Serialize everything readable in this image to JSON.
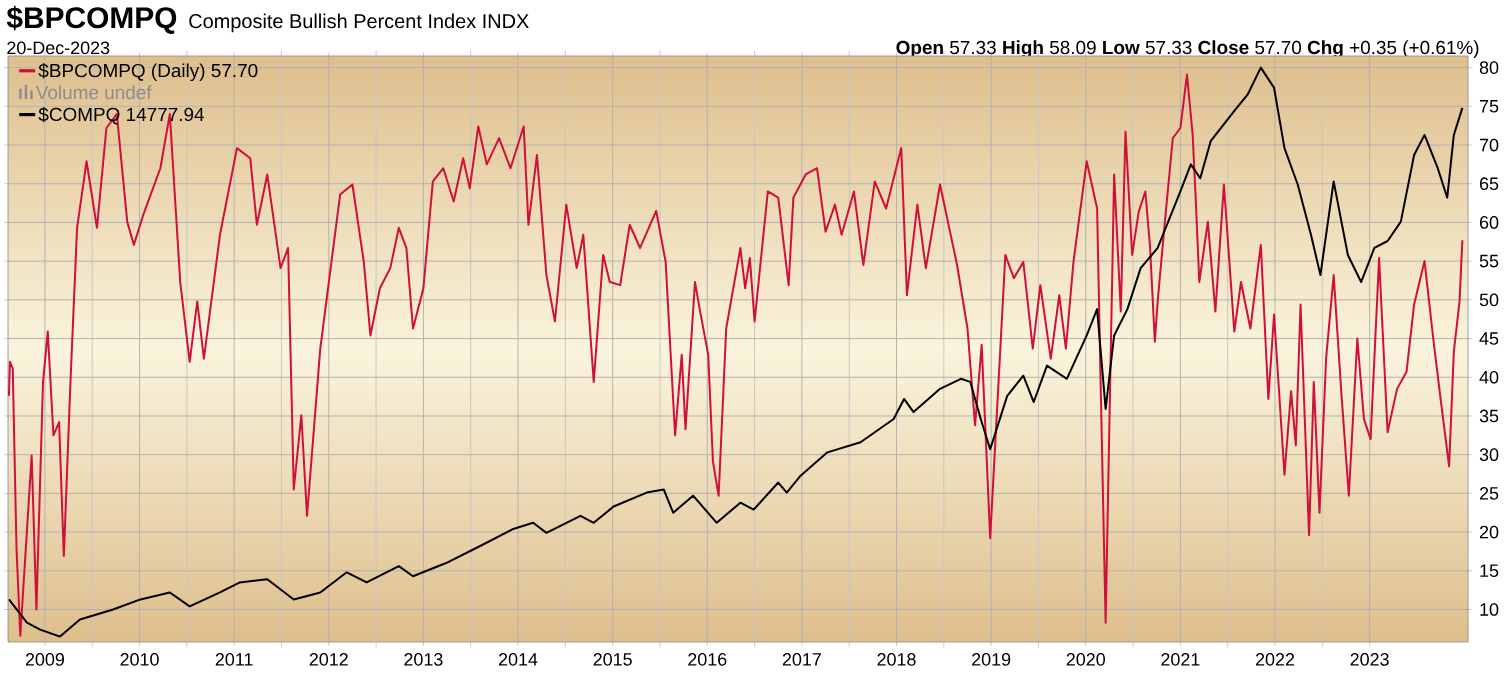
{
  "chart_data": {
    "type": "line",
    "title": "$BPCOMPQ",
    "subtitle": "Composite Bullish Percent Index  INDX",
    "annotations": [
      "20-Dec-2023",
      "**Open** 57.33  **High** 58.09  **Low** 57.33  **Close** 57.70  **Chg** +0.35 (+0.61%)",
      "Volume undef"
    ],
    "series": [
      {
        "name": "$BPCOMPQ (Daily) 57.70",
        "color": "#d0103a",
        "x": [
          2008.62,
          2008.63,
          2008.66,
          2008.7,
          2008.74,
          2008.86,
          2008.91,
          2008.98,
          2009.03,
          2009.09,
          2009.15,
          2009.2,
          2009.27,
          2009.34,
          2009.44,
          2009.55,
          2009.65,
          2009.76,
          2009.87,
          2009.94,
          2010.04,
          2010.22,
          2010.32,
          2010.43,
          2010.53,
          2010.61,
          2010.68,
          2010.85,
          2011.03,
          2011.17,
          2011.24,
          2011.35,
          2011.49,
          2011.57,
          2011.63,
          2011.71,
          2011.77,
          2011.91,
          2012.12,
          2012.25,
          2012.37,
          2012.44,
          2012.54,
          2012.65,
          2012.74,
          2012.82,
          2012.89,
          2013.0,
          2013.1,
          2013.21,
          2013.32,
          2013.42,
          2013.49,
          2013.58,
          2013.67,
          2013.8,
          2013.92,
          2014.06,
          2014.11,
          2014.2,
          2014.3,
          2014.39,
          2014.51,
          2014.62,
          2014.69,
          2014.8,
          2014.9,
          2014.97,
          2015.08,
          2015.18,
          2015.29,
          2015.46,
          2015.56,
          2015.66,
          2015.73,
          2015.77,
          2015.87,
          2015.92,
          2016.01,
          2016.06,
          2016.12,
          2016.2,
          2016.35,
          2016.4,
          2016.45,
          2016.5,
          2016.64,
          2016.75,
          2016.86,
          2016.91,
          2017.04,
          2017.16,
          2017.25,
          2017.35,
          2017.42,
          2017.55,
          2017.65,
          2017.77,
          2017.89,
          2018.05,
          2018.11,
          2018.22,
          2018.31,
          2018.46,
          2018.64,
          2018.75,
          2018.83,
          2018.9,
          2018.99,
          2019.15,
          2019.24,
          2019.34,
          2019.44,
          2019.52,
          2019.63,
          2019.72,
          2019.79,
          2019.87,
          2020.01,
          2020.12,
          2020.16,
          2020.21,
          2020.3,
          2020.37,
          2020.42,
          2020.49,
          2020.56,
          2020.63,
          2020.68,
          2020.73,
          2020.76,
          2020.83,
          2020.92,
          2021.0,
          2021.07,
          2021.13,
          2021.16,
          2021.2,
          2021.29,
          2021.37,
          2021.46,
          2021.57,
          2021.64,
          2021.74,
          2021.85,
          2021.93,
          2021.99,
          2022.1,
          2022.17,
          2022.22,
          2022.27,
          2022.36,
          2022.41,
          2022.47,
          2022.54,
          2022.62,
          2022.7,
          2022.78,
          2022.87,
          2022.94,
          2023.01,
          2023.1,
          2023.19,
          2023.29,
          2023.39,
          2023.47,
          2023.58,
          2023.68,
          2023.75,
          2023.84,
          2023.89,
          2023.95,
          2023.98
        ],
        "values": [
          37.6,
          42.0,
          41.1,
          17.8,
          6.6,
          29.9,
          10.0,
          39.4,
          45.9,
          32.5,
          34.2,
          16.9,
          39.4,
          59.3,
          67.9,
          59.3,
          72.2,
          74.0,
          60.1,
          57.1,
          61.0,
          67.0,
          74.0,
          52.3,
          42.0,
          49.8,
          42.4,
          58.4,
          69.6,
          68.3,
          59.7,
          66.2,
          54.1,
          56.7,
          25.5,
          35.1,
          22.1,
          43.7,
          63.6,
          64.9,
          54.9,
          45.4,
          51.5,
          54.1,
          59.3,
          56.7,
          46.3,
          51.5,
          65.3,
          67.0,
          62.7,
          68.3,
          64.4,
          72.4,
          67.5,
          70.9,
          67.0,
          72.4,
          59.7,
          68.7,
          53.2,
          47.2,
          62.3,
          54.1,
          58.4,
          39.4,
          55.8,
          52.3,
          51.9,
          59.7,
          56.7,
          61.5,
          54.9,
          32.5,
          42.9,
          33.3,
          52.3,
          48.8,
          42.9,
          29.1,
          24.7,
          46.3,
          56.7,
          51.5,
          55.4,
          47.2,
          64.0,
          63.2,
          51.9,
          63.2,
          66.2,
          67.0,
          58.8,
          62.3,
          58.4,
          64.0,
          54.5,
          65.3,
          61.8,
          69.6,
          50.6,
          62.3,
          54.1,
          64.9,
          54.5,
          46.3,
          33.8,
          44.2,
          19.2,
          55.8,
          52.8,
          54.9,
          43.7,
          51.9,
          42.4,
          50.6,
          43.7,
          54.9,
          67.9,
          61.8,
          37.6,
          8.3,
          66.2,
          48.5,
          71.7,
          55.8,
          61.4,
          64.0,
          56.7,
          44.6,
          49.8,
          59.3,
          70.9,
          72.2,
          79.1,
          71.3,
          63.6,
          52.3,
          60.1,
          48.5,
          64.9,
          45.9,
          52.3,
          46.3,
          57.1,
          37.2,
          48.1,
          27.4,
          38.2,
          31.2,
          49.4,
          19.6,
          39.4,
          22.5,
          42.4,
          53.2,
          38.2,
          24.7,
          45.0,
          34.6,
          32.0,
          55.4,
          32.9,
          38.5,
          40.7,
          49.4,
          55.0,
          44.2,
          37.2,
          28.5,
          43.3,
          49.8,
          57.7
        ]
      },
      {
        "name": "$COMPQ 14777.94",
        "color": "#000000",
        "x": [
          2008.62,
          2008.81,
          2008.95,
          2009.16,
          2009.37,
          2009.72,
          2010.01,
          2010.32,
          2010.53,
          2010.85,
          2011.06,
          2011.35,
          2011.63,
          2011.91,
          2012.19,
          2012.4,
          2012.74,
          2012.89,
          2013.24,
          2013.6,
          2013.95,
          2014.16,
          2014.3,
          2014.66,
          2014.8,
          2015.01,
          2015.36,
          2015.54,
          2015.64,
          2015.85,
          2016.1,
          2016.35,
          2016.49,
          2016.75,
          2016.84,
          2016.98,
          2017.27,
          2017.62,
          2017.97,
          2018.08,
          2018.18,
          2018.46,
          2018.68,
          2018.78,
          2018.89,
          2018.99,
          2019.17,
          2019.34,
          2019.45,
          2019.59,
          2019.8,
          2020.01,
          2020.12,
          2020.21,
          2020.3,
          2020.44,
          2020.58,
          2020.76,
          2021.0,
          2021.11,
          2021.21,
          2021.32,
          2021.57,
          2021.71,
          2021.85,
          2021.99,
          2022.1,
          2022.24,
          2022.38,
          2022.48,
          2022.62,
          2022.77,
          2022.91,
          2023.05,
          2023.19,
          2023.33,
          2023.47,
          2023.58,
          2023.72,
          2023.82,
          2023.89,
          2023.98
        ],
        "values": [
          11.3,
          8.3,
          7.4,
          6.5,
          8.7,
          10.0,
          11.3,
          12.2,
          10.4,
          12.2,
          13.5,
          13.9,
          11.3,
          12.2,
          14.8,
          13.5,
          15.6,
          14.3,
          16.0,
          18.2,
          20.4,
          21.2,
          19.9,
          22.1,
          21.2,
          23.3,
          25.1,
          25.5,
          22.5,
          24.7,
          21.2,
          23.8,
          22.9,
          26.4,
          25.1,
          27.2,
          30.3,
          31.6,
          34.6,
          37.2,
          35.5,
          38.5,
          39.8,
          39.4,
          34.6,
          30.7,
          37.6,
          40.2,
          36.8,
          41.5,
          39.8,
          45.4,
          48.8,
          35.9,
          45.4,
          48.8,
          54.1,
          56.7,
          64.0,
          67.5,
          65.7,
          70.5,
          74.4,
          76.5,
          80.0,
          77.4,
          69.6,
          64.9,
          58.4,
          53.2,
          65.3,
          55.8,
          52.3,
          56.7,
          57.6,
          60.1,
          68.7,
          71.3,
          67.0,
          63.2,
          71.3,
          74.8
        ]
      }
    ],
    "xlim": [
      2008.61,
      2024.04
    ],
    "xticks": [
      2009,
      2010,
      2011,
      2012,
      2013,
      2014,
      2015,
      2016,
      2017,
      2018,
      2019,
      2020,
      2021,
      2022,
      2023
    ],
    "ylim": [
      5.8,
      81.5
    ],
    "yticks": [
      10,
      15,
      20,
      25,
      30,
      35,
      40,
      45,
      50,
      55,
      60,
      65,
      70,
      75,
      80
    ],
    "grid": true,
    "legend": "top left"
  }
}
